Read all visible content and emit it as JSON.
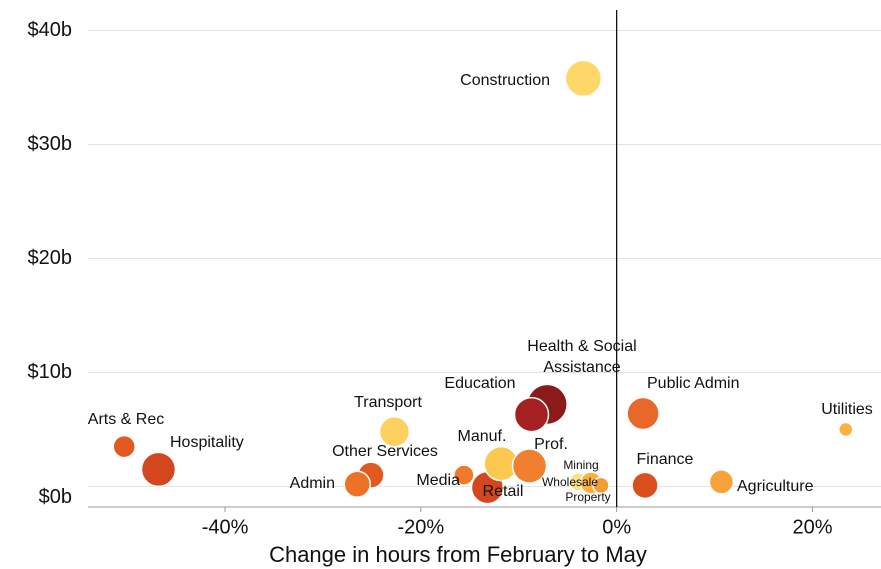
{
  "chart_data": {
    "type": "bubble",
    "xlabel": "Change in hours from February to May",
    "xlim": [
      -54,
      27
    ],
    "ylim": [
      -1.8,
      41.8
    ],
    "xticks": [
      {
        "value": -40,
        "label": "-40%"
      },
      {
        "value": -20,
        "label": "-20%"
      },
      {
        "value": 0,
        "label": "0%"
      },
      {
        "value": 20,
        "label": "20%"
      }
    ],
    "yticks": [
      {
        "value": 0,
        "label": "$0b"
      },
      {
        "value": 10,
        "label": "$10b"
      },
      {
        "value": 20,
        "label": "$20b"
      },
      {
        "value": 30,
        "label": "$30b"
      },
      {
        "value": 40,
        "label": "$40b"
      }
    ],
    "grid": true,
    "labels": [
      "Construction",
      "Health & Social Assistance",
      "Education",
      "Public Admin",
      "Utilities",
      "Transport",
      "Arts & Rec",
      "Hospitality",
      "Other Services",
      "Admin",
      "Media",
      "Retail",
      "Manuf.",
      "Prof.",
      "Mining",
      "Wholesale",
      "Property",
      "Finance",
      "Agriculture"
    ],
    "x": [
      -3.4,
      -7.1,
      -8.7,
      2.7,
      23.4,
      -22.7,
      -50.3,
      -46.8,
      -25.1,
      -26.5,
      -15.6,
      -13.2,
      -11.8,
      -8.9,
      -3.9,
      -2.6,
      -1.6,
      2.9,
      10.7
    ],
    "y": [
      35.8,
      7.2,
      6.3,
      6.4,
      5.0,
      4.8,
      3.5,
      1.5,
      1.0,
      0.2,
      1.0,
      -0.1,
      2.0,
      1.8,
      0.4,
      0.3,
      0.1,
      0.1,
      0.4
    ],
    "sizes": [
      18,
      20,
      17,
      16,
      7,
      15,
      11,
      17,
      13,
      13,
      10,
      16,
      17,
      17,
      9,
      11,
      8,
      13,
      12
    ],
    "colors": [
      "#fdd868",
      "#8b1a1a",
      "#a52020",
      "#e8682a",
      "#fbb040",
      "#fdd060",
      "#e05a20",
      "#d4461e",
      "#e05a20",
      "#ec7228",
      "#ee7a2a",
      "#d4461e",
      "#fdc850",
      "#f08030",
      "#fde080",
      "#fbb040",
      "#f39c30",
      "#d9501e",
      "#f7a23a"
    ]
  }
}
